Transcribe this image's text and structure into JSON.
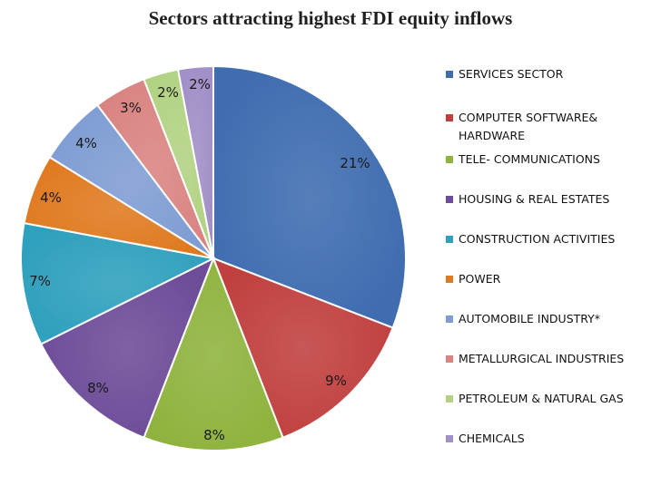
{
  "chart_data": {
    "type": "pie",
    "title": "Sectors attracting highest FDI equity inflows",
    "categories": [
      "SERVICES SECTOR",
      "COMPUTER SOFTWARE& HARDWARE",
      "TELE- COMMUNICATIONS",
      "HOUSING & REAL ESTATES",
      "CONSTRUCTION ACTIVITIES",
      "POWER",
      "AUTOMOBILE INDUSTRY*",
      "METALLURGICAL  INDUSTRIES",
      "PETROLEUM & NATURAL GAS",
      "CHEMICALS"
    ],
    "values": [
      21,
      9,
      8,
      8,
      7,
      4,
      4,
      3,
      2,
      2
    ],
    "labels": [
      "21%",
      "9%",
      "8%",
      "8%",
      "7%",
      "4%",
      "4%",
      "3%",
      "2%",
      "2%"
    ],
    "colors": [
      "#3f6db0",
      "#c0403f",
      "#8fb33e",
      "#6d4c98",
      "#2fa0bd",
      "#e07a20",
      "#7f9dd3",
      "#d98482",
      "#b2d283",
      "#a18fc7"
    ],
    "legend_position": "right",
    "start_angle_deg": 0,
    "direction": "clockwise"
  }
}
